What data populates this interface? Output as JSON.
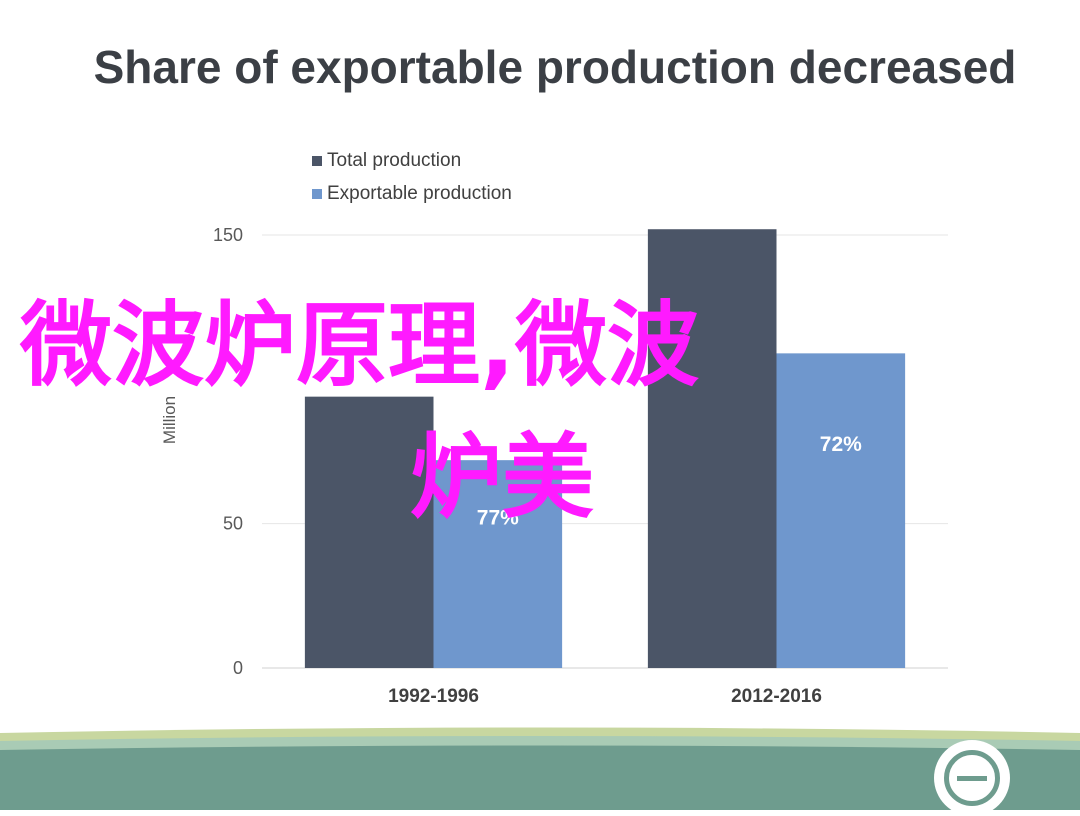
{
  "title": "Share of exportable production decreased",
  "chart_data": {
    "type": "bar",
    "categories": [
      "1992-1996",
      "2012-2016"
    ],
    "series": [
      {
        "name": "Total production",
        "values": [
          94,
          152
        ],
        "color": "#4b5567"
      },
      {
        "name": "Exportable production",
        "values": [
          72,
          109
        ],
        "color": "#6f97cd",
        "labels": [
          "77%",
          "72%"
        ]
      }
    ],
    "ylabel": "Million",
    "ylim": [
      0,
      150
    ],
    "yticks": [
      0,
      50,
      150
    ],
    "grid": true,
    "legend_position": "top-left"
  },
  "overlay": {
    "line1": "微波炉原理,微波",
    "line2": "炉美"
  },
  "colors": {
    "overlay": "#ff1aff",
    "footer": "#6e9c8e",
    "stripe1": "#c8d7a0",
    "stripe2": "#a9cbb5"
  }
}
